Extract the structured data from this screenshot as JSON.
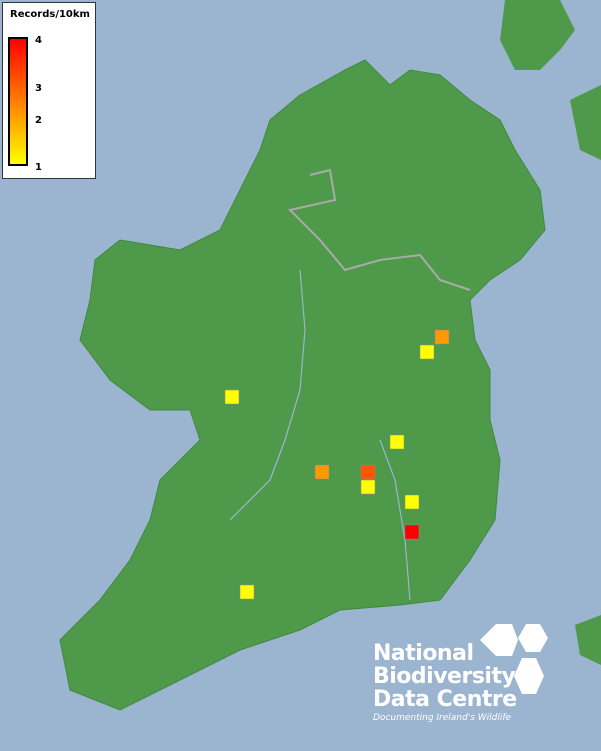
{
  "legend": {
    "title": "Records/10km",
    "ticks": [
      "4",
      "3",
      "2",
      "1"
    ],
    "scale_min": 1,
    "scale_max": 4,
    "color_low": "#ffff00",
    "color_high": "#ff0000"
  },
  "records": [
    {
      "value": 2,
      "color": "#ff9900"
    },
    {
      "value": 1,
      "color": "#ffff00"
    },
    {
      "value": 1,
      "color": "#ffff00"
    },
    {
      "value": 1,
      "color": "#ffff00"
    },
    {
      "value": 2,
      "color": "#ff9900"
    },
    {
      "value": 3,
      "color": "#ff5500"
    },
    {
      "value": 1,
      "color": "#ffff00"
    },
    {
      "value": 1,
      "color": "#ffff00"
    },
    {
      "value": 4,
      "color": "#ff0000"
    },
    {
      "value": 1,
      "color": "#ffff00"
    }
  ],
  "logo": {
    "lines": [
      "National",
      "Biodiversity",
      "Data Centre"
    ],
    "tagline": "Documenting Ireland's Wildlife"
  },
  "colors": {
    "sea": "#9bb4cf",
    "land": "#4f9a4a",
    "border": "#a9a9a9",
    "river": "#9bb4cf"
  }
}
